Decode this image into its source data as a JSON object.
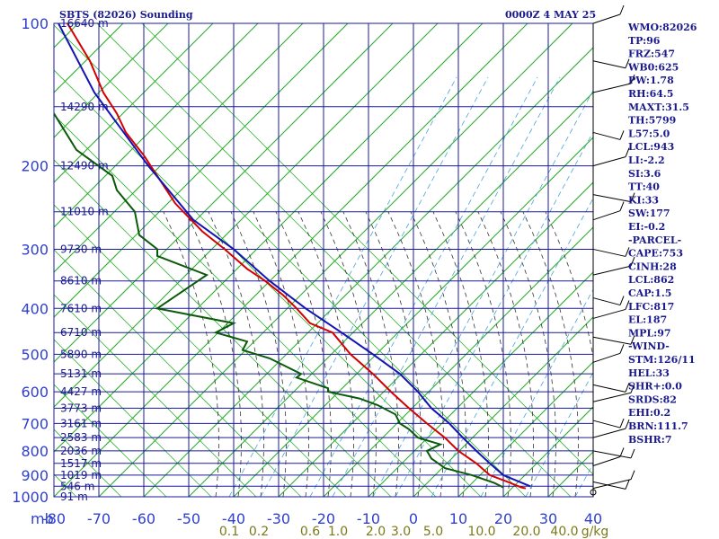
{
  "header": {
    "left": "SBTS (82026) Sounding",
    "right": "0000Z  4 MAY 25"
  },
  "indices": [
    "WMO:82026",
    "TP:96",
    "FRZ:547",
    "WB0:625",
    "PW:1.78",
    "RH:64.5",
    "MAXT:31.5",
    "TH:5799",
    "L57:5.0",
    "LCL:943",
    "LI:-2.2",
    "SI:3.6",
    "TT:40",
    "KI:33",
    "SW:177",
    "EI:-0.2",
    "-PARCEL-",
    "CAPE:753",
    "CINH:28",
    "LCL:862",
    "CAP:1.5",
    "LFC:817",
    "EL:187",
    "MPL:97",
    "-WIND-",
    "STM:126/11",
    "HEL:33",
    "SHR+:0.0",
    "SRDS:82",
    "EHI:0.2",
    "BRN:111.7",
    "BSHR:7"
  ],
  "chart_data": {
    "type": "line",
    "title": "SBTS (82026) Sounding",
    "xlabel": "",
    "ylabel": "mb",
    "pressure_ticks": [
      100,
      200,
      300,
      400,
      500,
      600,
      700,
      800,
      900,
      1000
    ],
    "pressure_tick_labels": [
      "100",
      "200",
      "300",
      "400",
      "500",
      "600",
      "700",
      "800",
      "900",
      "1000"
    ],
    "temperature_ticks": [
      -80,
      -70,
      -60,
      -50,
      -40,
      -30,
      -20,
      -10,
      0,
      10,
      20,
      30,
      40
    ],
    "temperature_tick_labels": [
      "-80",
      "-70",
      "-60",
      "-50",
      "-40",
      "-30",
      "-20",
      "-10",
      "0",
      "10",
      "20",
      "30",
      "40"
    ],
    "axis_unit_label": "mb",
    "xlim": [
      -80,
      40
    ],
    "ylim": [
      1000,
      100
    ],
    "mixing_ratio_labels": [
      "0.1",
      "0.2",
      "0.6",
      "1.0",
      "2.0",
      "3.0",
      "5.0",
      "10.0",
      "20.0",
      "40.0",
      "g/kg"
    ],
    "height_labels": [
      {
        "p": 100,
        "label": "16640 m"
      },
      {
        "p": 150,
        "label": "14290 m"
      },
      {
        "p": 200,
        "label": "12490 m"
      },
      {
        "p": 250,
        "label": "11010 m"
      },
      {
        "p": 300,
        "label": "9730 m"
      },
      {
        "p": 350,
        "label": "8610 m"
      },
      {
        "p": 400,
        "label": "7610 m"
      },
      {
        "p": 450,
        "label": "6710 m"
      },
      {
        "p": 500,
        "label": "5890 m"
      },
      {
        "p": 550,
        "label": "5131 m"
      },
      {
        "p": 600,
        "label": "4427 m"
      },
      {
        "p": 650,
        "label": "3773 m"
      },
      {
        "p": 700,
        "label": "3161 m"
      },
      {
        "p": 750,
        "label": "2583 m"
      },
      {
        "p": 800,
        "label": "2036 m"
      },
      {
        "p": 850,
        "label": "1517 m"
      },
      {
        "p": 900,
        "label": "1019 m"
      },
      {
        "p": 950,
        "label": "546 m"
      },
      {
        "p": 1000,
        "label": "91 m"
      }
    ],
    "series": [
      {
        "name": "temperature",
        "color": "#d40000",
        "points": [
          [
            -77,
            100
          ],
          [
            -72,
            120
          ],
          [
            -69,
            140
          ],
          [
            -66,
            155
          ],
          [
            -64,
            170
          ],
          [
            -60,
            190
          ],
          [
            -57,
            210
          ],
          [
            -53,
            240
          ],
          [
            -47,
            275
          ],
          [
            -42,
            300
          ],
          [
            -37,
            330
          ],
          [
            -33,
            350
          ],
          [
            -29,
            375
          ],
          [
            -26,
            400
          ],
          [
            -23,
            430
          ],
          [
            -18,
            450
          ],
          [
            -14,
            500
          ],
          [
            -9,
            550
          ],
          [
            -5,
            600
          ],
          [
            -1,
            650
          ],
          [
            3,
            700
          ],
          [
            7,
            750
          ],
          [
            10,
            800
          ],
          [
            14,
            850
          ],
          [
            17,
            900
          ],
          [
            21,
            930
          ],
          [
            24,
            955
          ],
          [
            25,
            960
          ]
        ]
      },
      {
        "name": "dewpoint",
        "color": "#0a5a0a",
        "points": [
          [
            -80,
            155
          ],
          [
            -75,
            185
          ],
          [
            -67,
            210
          ],
          [
            -66,
            225
          ],
          [
            -62,
            250
          ],
          [
            -61,
            280
          ],
          [
            -57,
            300
          ],
          [
            -57,
            310
          ],
          [
            -46,
            340
          ],
          [
            -57,
            400
          ],
          [
            -40,
            430
          ],
          [
            -44,
            450
          ],
          [
            -37,
            470
          ],
          [
            -38,
            490
          ],
          [
            -32,
            510
          ],
          [
            -25,
            550
          ],
          [
            -26,
            560
          ],
          [
            -19,
            590
          ],
          [
            -19,
            600
          ],
          [
            -12,
            620
          ],
          [
            -8,
            640
          ],
          [
            -4,
            670
          ],
          [
            -3,
            700
          ],
          [
            -1,
            720
          ],
          [
            1,
            750
          ],
          [
            6,
            775
          ],
          [
            3,
            800
          ],
          [
            4,
            830
          ],
          [
            7,
            870
          ],
          [
            13,
            900
          ],
          [
            18,
            935
          ],
          [
            20,
            955
          ]
        ]
      },
      {
        "name": "parcel",
        "color": "#1414b4",
        "points": [
          [
            -79,
            100
          ],
          [
            -71,
            140
          ],
          [
            -59,
            200
          ],
          [
            -49,
            260
          ],
          [
            -40,
            300
          ],
          [
            -32,
            350
          ],
          [
            -24,
            400
          ],
          [
            -16,
            450
          ],
          [
            -9,
            500
          ],
          [
            -3,
            550
          ],
          [
            1,
            600
          ],
          [
            4,
            650
          ],
          [
            8,
            700
          ],
          [
            11,
            750
          ],
          [
            14,
            800
          ],
          [
            17,
            850
          ],
          [
            20,
            900
          ],
          [
            26,
            950
          ]
        ]
      }
    ],
    "wind_barbs_pressures": [
      100,
      120,
      140,
      170,
      200,
      230,
      260,
      300,
      340,
      380,
      420,
      460,
      520,
      580,
      630,
      690,
      750,
      800,
      860,
      930,
      960
    ]
  }
}
